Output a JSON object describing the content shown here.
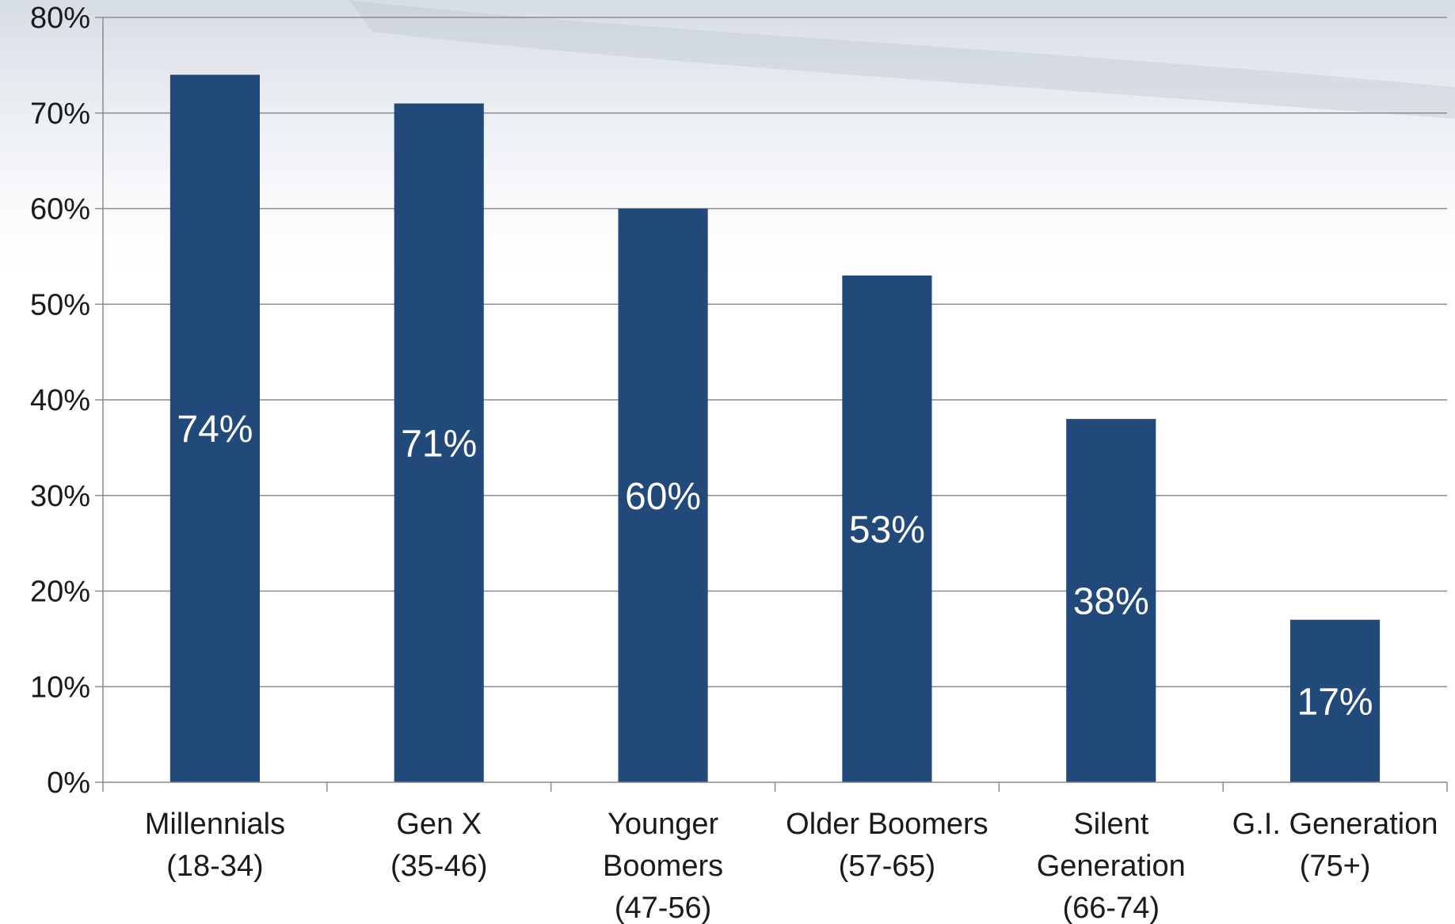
{
  "chart_data": {
    "type": "bar",
    "categories": [
      [
        "Millennials",
        "(18-34)"
      ],
      [
        "Gen X",
        "(35-46)"
      ],
      [
        "Younger",
        "Boomers",
        "(47-56)"
      ],
      [
        "Older Boomers",
        "(57-65)"
      ],
      [
        "Silent",
        "Generation",
        "(66-74)"
      ],
      [
        "G.I. Generation",
        "(75+)"
      ]
    ],
    "values": [
      74,
      71,
      60,
      53,
      38,
      17
    ],
    "data_labels": [
      "74%",
      "71%",
      "60%",
      "53%",
      "38%",
      "17%"
    ],
    "ylim": [
      0,
      80
    ],
    "yticks": [
      0,
      10,
      20,
      30,
      40,
      50,
      60,
      70,
      80
    ],
    "ytick_labels": [
      "0%",
      "10%",
      "20%",
      "30%",
      "40%",
      "50%",
      "60%",
      "70%",
      "80%"
    ],
    "grid": true,
    "colors": {
      "bar": "#21497A",
      "grid": "#8c8c8c",
      "axis": "#8c8c8c"
    }
  }
}
